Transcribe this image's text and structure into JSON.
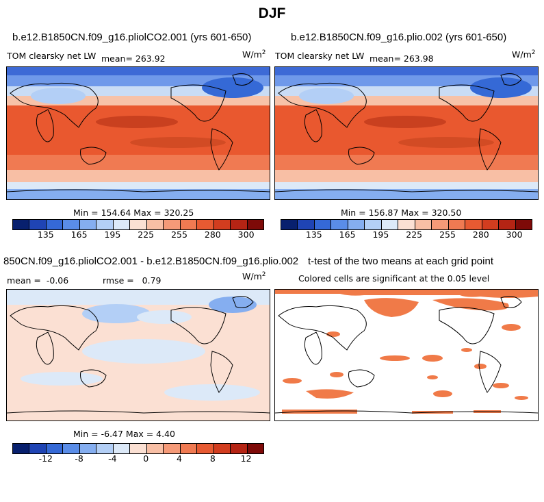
{
  "figure_title": "DJF",
  "panels": [
    {
      "title": "b.e12.B1850CN.f09_g16.pliolCO2.001 (yrs 601-650)",
      "variable": "TOM clearsky net LW",
      "mean_text": "mean= 263.92",
      "units": "W/m",
      "units_exp": "2",
      "stats": "Min = 154.64 Max = 320.25"
    },
    {
      "title": "b.e12.B1850CN.f09_g16.plio.002 (yrs 601-650)",
      "variable": "TOM clearsky net LW",
      "mean_text": "mean= 263.98",
      "units": "W/m",
      "units_exp": "2",
      "stats": "Min = 156.87 Max = 320.50"
    },
    {
      "title": "850CN.f09_g16.pliolCO2.001 - b.e12.B1850CN.f09_g16.plio.002",
      "mean_label": "mean =",
      "mean_value": "-0.06",
      "rmse_label": "rmse =",
      "rmse_value": "0.79",
      "units": "W/m",
      "units_exp": "2",
      "stats": "Min = -6.47 Max = 4.40"
    },
    {
      "title": "t-test of the two means at each grid point",
      "note": "Colored cells are significant at the 0.05 level"
    }
  ],
  "colorbar_abs": {
    "labels": [
      "135",
      "165",
      "195",
      "225",
      "255",
      "280",
      "300"
    ],
    "colors": [
      "#08206e",
      "#1f44b4",
      "#3569d6",
      "#5a8de8",
      "#85aef0",
      "#b3cff6",
      "#dce9f8",
      "#fbe0d3",
      "#f8bfa5",
      "#f59a78",
      "#f07a52",
      "#e75a32",
      "#d23d1f",
      "#b52414",
      "#7e0a08"
    ]
  },
  "colorbar_diff": {
    "labels": [
      "-12",
      "-8",
      "-4",
      "0",
      "4",
      "8",
      "12"
    ],
    "colors": [
      "#08206e",
      "#1f44b4",
      "#3569d6",
      "#5a8de8",
      "#85aef0",
      "#b3cff6",
      "#dce9f8",
      "#fbe0d3",
      "#f8bfa5",
      "#f59a78",
      "#f07a52",
      "#e75a32",
      "#d23d1f",
      "#b52414",
      "#7e0a08"
    ]
  },
  "colors": {
    "warm": "#e9582f",
    "warm_light": "#f58a62",
    "cool": "#4d7fe0",
    "significance": "#f07a48"
  }
}
